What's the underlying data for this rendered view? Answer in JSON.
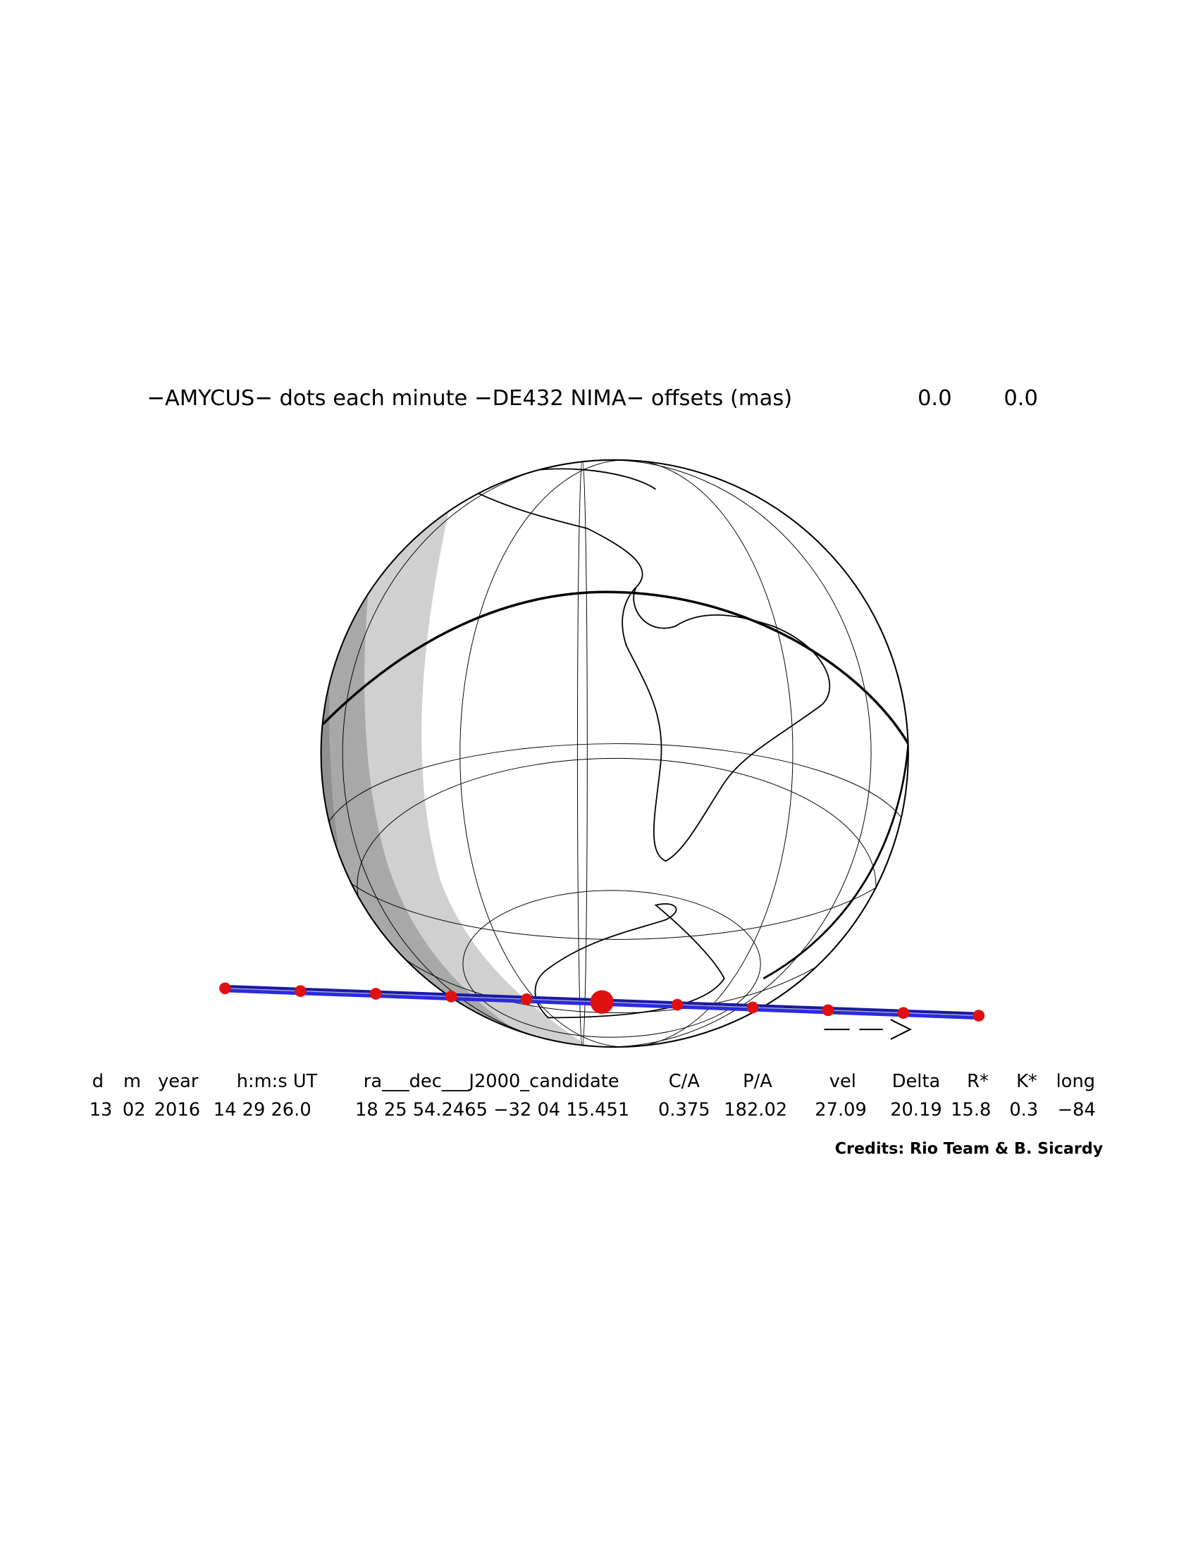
{
  "title": "−AMYCUS− dots each minute −DE432 NIMA− offsets (mas)",
  "offsets": [
    "0.0",
    "0.0"
  ],
  "table": {
    "headers": [
      "d",
      "m",
      "year",
      "h:m:s UT",
      "ra___dec___J2000_candidate",
      "C/A",
      "P/A",
      "vel",
      "Delta",
      "R*",
      "K*",
      "long"
    ],
    "row": [
      "13",
      "02",
      "2016",
      "14 29 26.0",
      "18 25 54.2465 −32 04 15.451",
      "0.375",
      "182.02",
      "27.09",
      "20.19",
      "15.8",
      "0.3",
      "−84"
    ]
  },
  "credits": "Credits: Rio Team & B. Sicardy"
}
